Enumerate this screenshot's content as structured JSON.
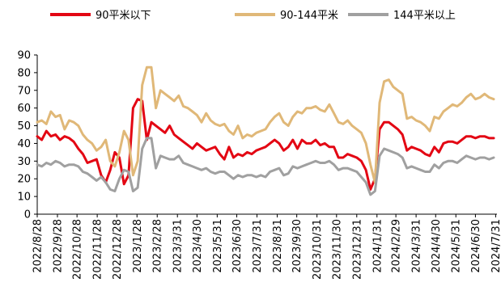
{
  "chart_data": {
    "type": "line",
    "title": "",
    "xlabel": "",
    "ylabel": "",
    "ylim": [
      0,
      90
    ],
    "yticks": [
      0,
      10,
      20,
      30,
      40,
      50,
      60,
      70,
      80,
      90
    ],
    "grid": false,
    "legend_position": "top",
    "x_tick_labels": [
      "2022/8/28",
      "2022/9/28",
      "2022/10/28",
      "2022/11/28",
      "2022/12/28",
      "2023/1/28",
      "2023/2/28",
      "2023/3/31",
      "2023/4/30",
      "2023/5/31",
      "2023/6/30",
      "2023/7/31",
      "2023/8/31",
      "2023/9/30",
      "2023/10/31",
      "2023/11/30",
      "2023/12/31",
      "2024/1/31",
      "2024/2/29",
      "2024/3/31",
      "2024/4/30",
      "2024/5/31",
      "2024/6/30",
      "2024/7/31"
    ],
    "x_start": "2022-08-28",
    "x_step_days": 7,
    "series": [
      {
        "name": "90平米以下",
        "color": "#e30613",
        "values": [
          44,
          42,
          47,
          44,
          45,
          42,
          44,
          43,
          41,
          37,
          34,
          29,
          30,
          31,
          22,
          18,
          25,
          35,
          32,
          17,
          22,
          60,
          65,
          64,
          42,
          52,
          50,
          48,
          46,
          50,
          45,
          43,
          41,
          39,
          37,
          40,
          38,
          36,
          37,
          38,
          34,
          31,
          38,
          32,
          34,
          33,
          35,
          34,
          36,
          37,
          38,
          40,
          42,
          40,
          36,
          38,
          42,
          37,
          42,
          40,
          40,
          42,
          39,
          40,
          38,
          38,
          32,
          32,
          34,
          33,
          32,
          30,
          25,
          14,
          20,
          48,
          52,
          52,
          50,
          48,
          45,
          36,
          38,
          37,
          36,
          34,
          33,
          38,
          35,
          40,
          41,
          41,
          40,
          42,
          44,
          44,
          43,
          44,
          44,
          43,
          43
        ]
      },
      {
        "name": "90-144平米",
        "color": "#e0b878",
        "values": [
          52,
          53,
          51,
          58,
          55,
          56,
          48,
          53,
          52,
          50,
          45,
          42,
          40,
          36,
          38,
          42,
          30,
          27,
          35,
          47,
          42,
          22,
          30,
          73,
          83,
          83,
          60,
          70,
          68,
          66,
          64,
          67,
          61,
          60,
          58,
          56,
          52,
          57,
          53,
          51,
          50,
          51,
          47,
          45,
          50,
          43,
          45,
          44,
          46,
          47,
          48,
          52,
          55,
          57,
          52,
          50,
          55,
          58,
          57,
          60,
          60,
          61,
          59,
          58,
          62,
          57,
          52,
          51,
          53,
          50,
          48,
          46,
          40,
          28,
          18,
          63,
          75,
          76,
          72,
          70,
          68,
          54,
          55,
          53,
          52,
          50,
          47,
          55,
          54,
          58,
          60,
          62,
          61,
          63,
          66,
          68,
          65,
          66,
          68,
          66,
          65
        ]
      },
      {
        "name": "144平米以上",
        "color": "#a0a0a0",
        "values": [
          28,
          27,
          29,
          28,
          30,
          29,
          27,
          28,
          28,
          27,
          24,
          23,
          21,
          19,
          21,
          18,
          14,
          13,
          20,
          25,
          24,
          13,
          15,
          37,
          43,
          43,
          26,
          33,
          32,
          31,
          31,
          33,
          29,
          28,
          27,
          26,
          25,
          26,
          24,
          23,
          24,
          24,
          22,
          20,
          22,
          21,
          22,
          22,
          21,
          22,
          21,
          24,
          25,
          26,
          22,
          23,
          27,
          26,
          27,
          28,
          29,
          30,
          29,
          29,
          30,
          28,
          25,
          26,
          26,
          25,
          24,
          21,
          18,
          11,
          13,
          33,
          37,
          36,
          35,
          34,
          32,
          26,
          27,
          26,
          25,
          24,
          24,
          28,
          26,
          29,
          30,
          30,
          29,
          31,
          33,
          32,
          31,
          32,
          32,
          31,
          32
        ]
      }
    ]
  }
}
